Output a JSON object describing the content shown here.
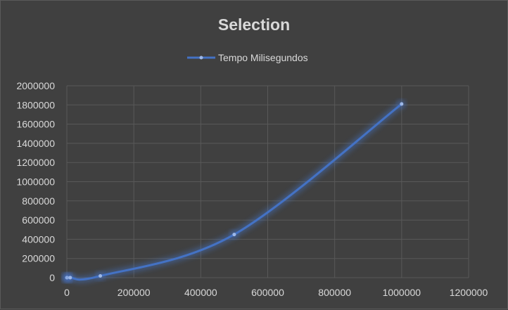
{
  "chart_data": {
    "type": "scatter",
    "title": "Selection",
    "xlabel": "",
    "ylabel": "",
    "xlim": [
      0,
      1200000
    ],
    "ylim": [
      0,
      2000000
    ],
    "x_ticks": [
      "0",
      "200000",
      "400000",
      "600000",
      "800000",
      "1000000",
      "1200000"
    ],
    "y_ticks": [
      "0",
      "200000",
      "400000",
      "600000",
      "800000",
      "1000000",
      "1200000",
      "1400000",
      "1600000",
      "1800000",
      "2000000"
    ],
    "grid": true,
    "legend_position": "top",
    "series": [
      {
        "name": "Tempo Milisegundos",
        "color": "#4472c4",
        "marker_color": "#9db8e8",
        "connected": "smooth-line",
        "points": [
          {
            "x": 10,
            "y": 0
          },
          {
            "x": 100,
            "y": 5
          },
          {
            "x": 1000,
            "y": 50
          },
          {
            "x": 10000,
            "y": 450
          },
          {
            "x": 100000,
            "y": 18000
          },
          {
            "x": 500000,
            "y": 450000
          },
          {
            "x": 1000000,
            "y": 1810000
          }
        ]
      }
    ]
  }
}
